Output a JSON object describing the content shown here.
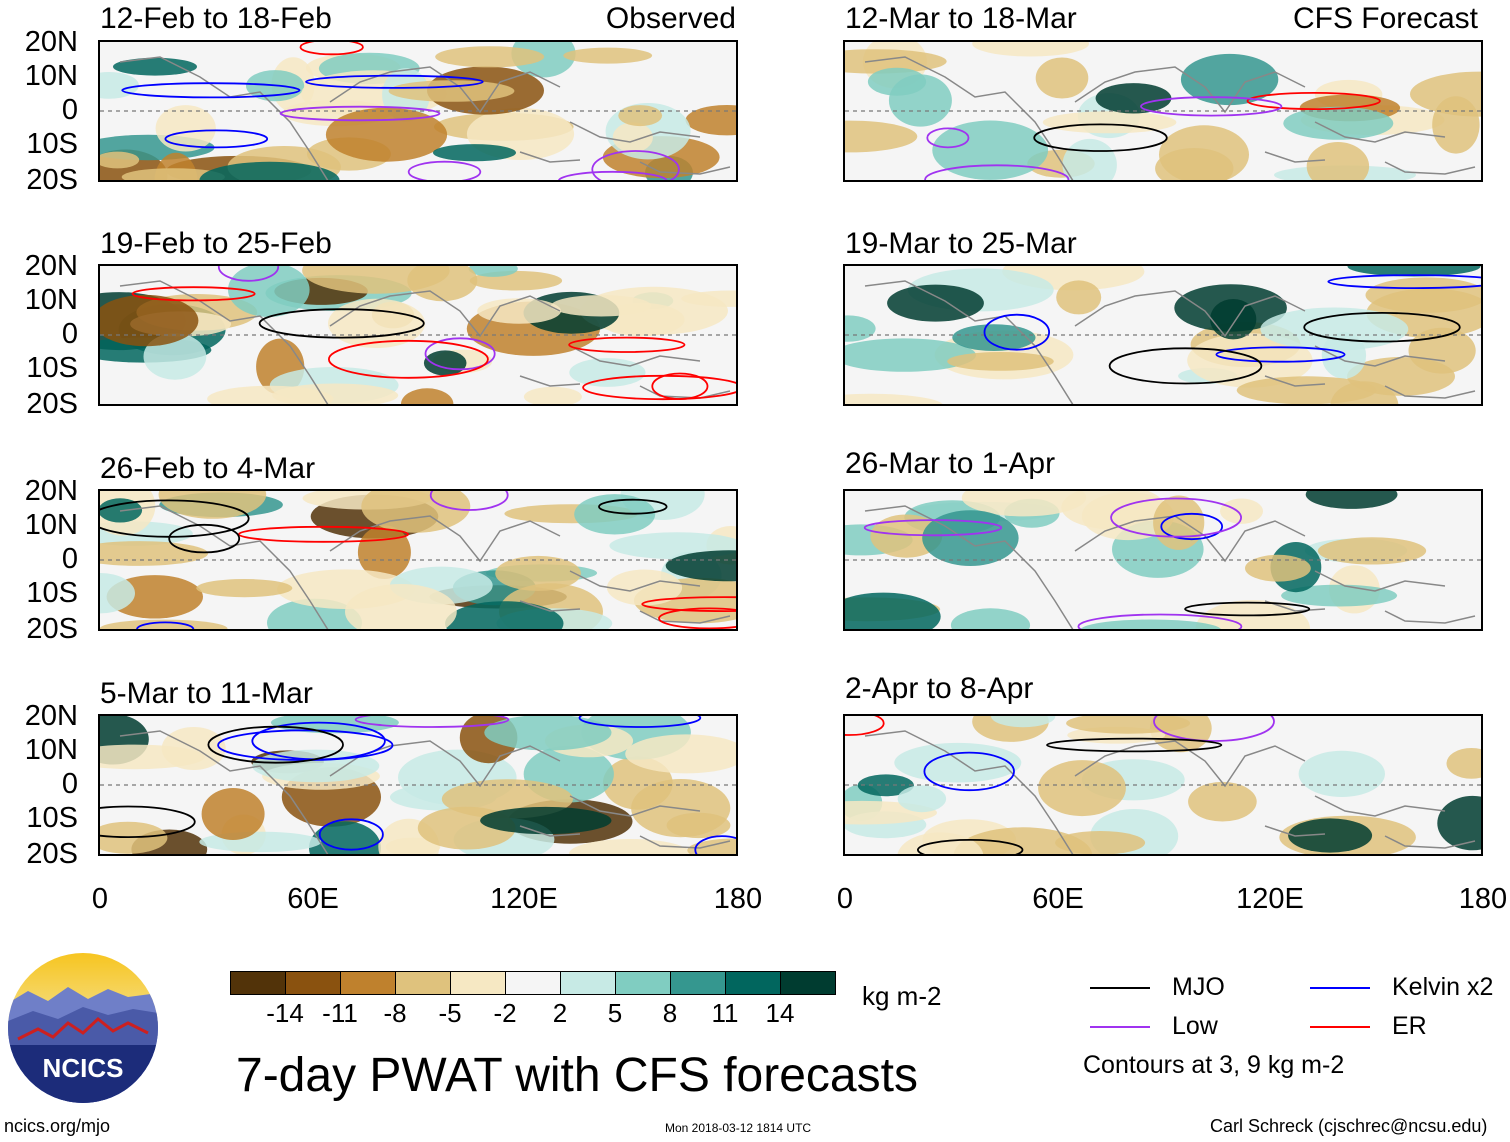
{
  "title": "7-day PWAT with CFS forecasts",
  "units": "kg m-2",
  "left_column_tag": "Observed",
  "right_column_tag": "CFS Forecast",
  "panels_left": [
    {
      "label": "12-Feb to 18-Feb"
    },
    {
      "label": "19-Feb to 25-Feb"
    },
    {
      "label": "26-Feb to 4-Mar"
    },
    {
      "label": "5-Mar to 11-Mar"
    }
  ],
  "panels_right": [
    {
      "label": "12-Mar to 18-Mar"
    },
    {
      "label": "19-Mar to 25-Mar"
    },
    {
      "label": "26-Mar to 1-Apr"
    },
    {
      "label": "2-Apr to 8-Apr"
    }
  ],
  "lat_labels": [
    "20N",
    "10N",
    "0",
    "10S",
    "20S"
  ],
  "lon_labels": [
    "0",
    "60E",
    "120E",
    "180"
  ],
  "colorbar": {
    "colors": [
      "#523309",
      "#8a520f",
      "#bf812d",
      "#dfc27d",
      "#f6e8c3",
      "#f5f5f5",
      "#c7eae5",
      "#80cdc1",
      "#35978f",
      "#01665e",
      "#003c30"
    ],
    "labels": [
      "-14",
      "-11",
      "-8",
      "-5",
      "-2",
      "2",
      "5",
      "8",
      "11",
      "14"
    ]
  },
  "legend": {
    "items": [
      {
        "label": "MJO",
        "color": "#000000"
      },
      {
        "label": "Kelvin x2",
        "color": "#0000ff"
      },
      {
        "label": "Low",
        "color": "#a033f0"
      },
      {
        "label": "ER",
        "color": "#ff0000"
      }
    ],
    "note": "Contours at 3, 9 kg m-2"
  },
  "logo_text": "NCICS",
  "footer": {
    "url": "ncics.org/mjo",
    "timestamp": "Mon 2018-03-12 1814 UTC",
    "credit": "Carl Schreck (cjschrec@ncsu.edu)"
  },
  "colors": {
    "equator_line": "#777777",
    "coast": "#888888"
  }
}
